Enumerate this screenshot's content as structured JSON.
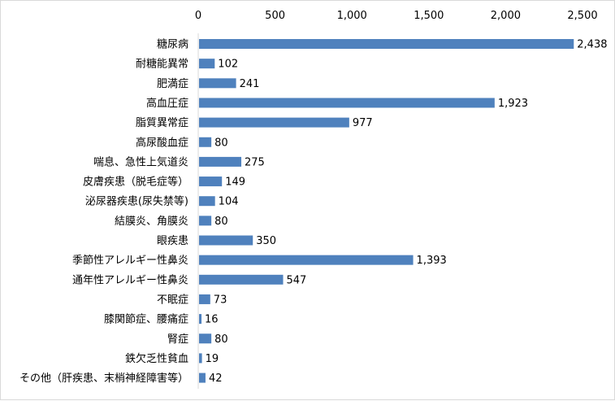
{
  "chart_data": {
    "type": "bar",
    "orientation": "horizontal",
    "title": "",
    "xlabel": "",
    "ylabel": "",
    "xlim": [
      0,
      2500
    ],
    "x_ticks": [
      0,
      500,
      1000,
      1500,
      2000,
      2500
    ],
    "x_tick_labels": [
      "0",
      "500",
      "1,000",
      "1,500",
      "2,000",
      "2,500"
    ],
    "x_axis_position": "top",
    "grid": false,
    "legend": "none",
    "bar_color": "#4f81bd",
    "categories": [
      "糖尿病",
      "耐糖能異常",
      "肥満症",
      "高血圧症",
      "脂質異常症",
      "高尿酸血症",
      "喘息、急性上気道炎",
      "皮膚疾患（脱毛症等）",
      "泌尿器疾患(尿失禁等)",
      "結膜炎、角膜炎",
      "眼疾患",
      "季節性アレルギー性鼻炎",
      "通年性アレルギー性鼻炎",
      "不眠症",
      "膝関節症、腰痛症",
      "腎症",
      "鉄欠乏性貧血",
      "その他（肝疾患、末梢神経障害等）"
    ],
    "values": [
      2438,
      102,
      241,
      1923,
      977,
      80,
      275,
      149,
      104,
      80,
      350,
      1393,
      547,
      73,
      16,
      80,
      19,
      42
    ],
    "value_labels": [
      "2,438",
      "102",
      "241",
      "1,923",
      "977",
      "80",
      "275",
      "149",
      "104",
      "80",
      "350",
      "1,393",
      "547",
      "73",
      "16",
      "80",
      "19",
      "42"
    ]
  }
}
